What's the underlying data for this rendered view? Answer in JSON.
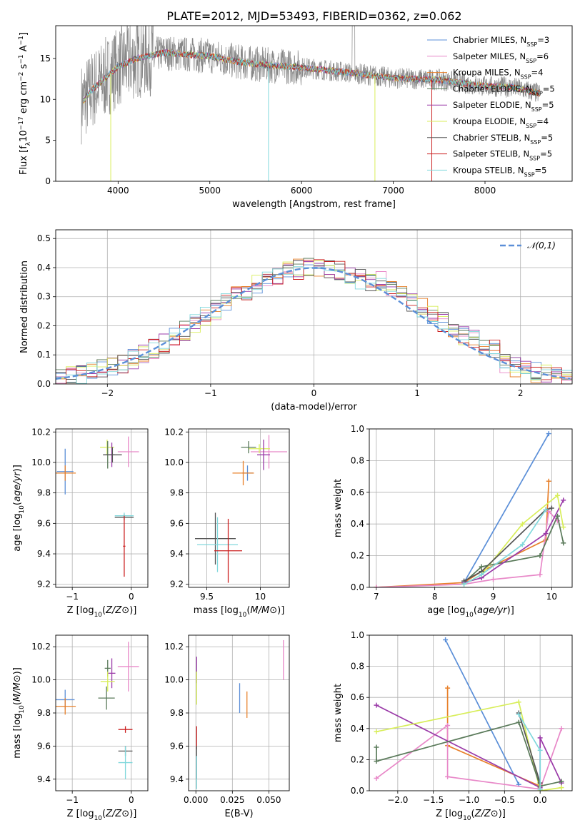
{
  "figure_title": "PLATE=2012, MJD=53493, FIBERID=0362, z=0.062",
  "series_colors": {
    "Chabrier MILES": "#5b8fd8",
    "Salpeter MILES": "#e888c8",
    "Kroupa MILES": "#e8802a",
    "Chabrier ELODIE": "#5a7a5a",
    "Salpeter ELODIE": "#9a3aa8",
    "Kroupa ELODIE": "#d8ee5a",
    "Chabrier STELIB": "#555555",
    "Salpeter STELIB": "#cc2222",
    "Kroupa STELIB": "#80d8dc"
  },
  "chart_data": [
    {
      "id": "spectrum",
      "type": "line",
      "xlabel": "wavelength [Angstrom, rest frame]",
      "ylabel": "Flux [f_λ 10^-17 erg cm^-2 s^-1 A^-1]",
      "xlim": [
        3320,
        8950
      ],
      "ylim": [
        0,
        19
      ],
      "xticks": [
        4000,
        5000,
        6000,
        7000,
        8000
      ],
      "yticks": [
        0,
        5,
        10,
        15
      ],
      "grid": false,
      "legend_position": "right",
      "legend": [
        {
          "name": "Chabrier MILES",
          "nssp": "3"
        },
        {
          "name": "Salpeter MILES",
          "nssp": "6"
        },
        {
          "name": "Kroupa MILES",
          "nssp": "4"
        },
        {
          "name": "Chabrier ELODIE",
          "nssp": "5"
        },
        {
          "name": "Salpeter ELODIE",
          "nssp": "5"
        },
        {
          "name": "Kroupa ELODIE",
          "nssp": "4"
        },
        {
          "name": "Chabrier STELIB",
          "nssp": "5"
        },
        {
          "name": "Salpeter STELIB",
          "nssp": "5"
        },
        {
          "name": "Kroupa STELIB",
          "nssp": "5"
        }
      ],
      "data_curve": {
        "color": "#888888",
        "x_range": [
          3600,
          8600
        ]
      },
      "model_envelope": [
        [
          3600,
          9.5
        ],
        [
          3700,
          11
        ],
        [
          3800,
          12
        ],
        [
          3900,
          13
        ],
        [
          4000,
          14
        ],
        [
          4200,
          15
        ],
        [
          4500,
          15.7
        ],
        [
          5000,
          15.3
        ],
        [
          5300,
          14.6
        ],
        [
          5600,
          14.2
        ],
        [
          6000,
          13.9
        ],
        [
          6500,
          13.3
        ],
        [
          7000,
          12.6
        ],
        [
          7500,
          12.4
        ],
        [
          8000,
          11.6
        ],
        [
          8300,
          11.5
        ],
        [
          8600,
          10.7
        ]
      ]
    },
    {
      "id": "residuals",
      "type": "bar",
      "xlabel": "(data-model)/error",
      "ylabel": "Normed distribution",
      "xlim": [
        -2.5,
        2.5
      ],
      "ylim": [
        0,
        0.53
      ],
      "xticks": [
        -2,
        -1,
        0,
        1,
        2
      ],
      "yticks": [
        0.0,
        0.1,
        0.2,
        0.3,
        0.4,
        0.5
      ],
      "grid": true,
      "legend_position": "top-right",
      "reference_curve": {
        "name": "N(0,1)",
        "mu": 0,
        "sigma": 1,
        "color": "#5b8fd8"
      },
      "bin_width": 0.1
    },
    {
      "id": "age_vs_Z",
      "type": "scatter",
      "xlabel": "Z [log10(Z/Z⊙)]",
      "ylabel": "age [log10(age/yr)]",
      "xlim": [
        -1.28,
        0.28
      ],
      "ylim": [
        9.18,
        10.22
      ],
      "xticks": [
        -1,
        0
      ],
      "yticks": [
        9.2,
        9.4,
        9.6,
        9.8,
        10.0,
        10.2
      ],
      "grid": true,
      "errorbars": [
        {
          "series": "Chabrier MILES",
          "x": -1.12,
          "y": 9.94,
          "xerr": 0.14,
          "yerr": 0.15
        },
        {
          "series": "Kroupa MILES",
          "x": -1.12,
          "y": 9.93,
          "xerr": 0.18,
          "yerr": 0.05
        },
        {
          "series": "Salpeter MILES",
          "x": -0.05,
          "y": 10.07,
          "xerr": 0.18,
          "yerr": 0.1
        },
        {
          "series": "Kroupa ELODIE",
          "x": -0.41,
          "y": 10.1,
          "xerr": 0.12,
          "yerr": 0.05
        },
        {
          "series": "Chabrier ELODIE",
          "x": -0.4,
          "y": 10.05,
          "xerr": 0.05,
          "yerr": 0.09
        },
        {
          "series": "Salpeter ELODIE",
          "x": -0.33,
          "y": 10.05,
          "xerr": 0.05,
          "yerr": 0.08
        },
        {
          "series": "Chabrier STELIB",
          "x": -0.32,
          "y": 10.05,
          "xerr": 0.16,
          "yerr": 0.05
        },
        {
          "series": "Chabrier STELIB",
          "x": -0.12,
          "y": 9.64,
          "xerr": 0.16,
          "yerr": 0.02
        },
        {
          "series": "Kroupa STELIB",
          "x": -0.12,
          "y": 9.65,
          "xerr": 0.16,
          "yerr": 0.02
        },
        {
          "series": "Salpeter STELIB",
          "x": -0.12,
          "y": 9.45,
          "xerr": 0.02,
          "yerr": 0.2
        }
      ]
    },
    {
      "id": "age_vs_mass",
      "type": "scatter",
      "xlabel": "mass [log10(M/M⊙)]",
      "ylabel": "",
      "xlim": [
        9.33,
        10.27
      ],
      "ylim": [
        9.18,
        10.22
      ],
      "xticks": [
        9.5,
        10.0
      ],
      "yticks": [
        9.2,
        9.4,
        9.6,
        9.8,
        10.0,
        10.2
      ],
      "grid": true,
      "errorbars": [
        {
          "series": "Chabrier MILES",
          "x": 9.88,
          "y": 9.93,
          "xerr": 0.05,
          "yerr": 0.05
        },
        {
          "series": "Kroupa MILES",
          "x": 9.84,
          "y": 9.93,
          "xerr": 0.1,
          "yerr": 0.08
        },
        {
          "series": "Salpeter MILES",
          "x": 10.08,
          "y": 10.07,
          "xerr": 0.17,
          "yerr": 0.11
        },
        {
          "series": "Kroupa ELODIE",
          "x": 9.99,
          "y": 10.09,
          "xerr": 0.1,
          "yerr": 0.03
        },
        {
          "series": "Chabrier ELODIE",
          "x": 9.89,
          "y": 10.1,
          "xerr": 0.07,
          "yerr": 0.04
        },
        {
          "series": "Salpeter ELODIE",
          "x": 10.03,
          "y": 10.05,
          "xerr": 0.06,
          "yerr": 0.1
        },
        {
          "series": "Chabrier STELIB",
          "x": 9.58,
          "y": 9.5,
          "xerr": 0.19,
          "yerr": 0.17
        },
        {
          "series": "Kroupa STELIB",
          "x": 9.6,
          "y": 9.46,
          "xerr": 0.19,
          "yerr": 0.18
        },
        {
          "series": "Salpeter STELIB",
          "x": 9.7,
          "y": 9.42,
          "xerr": 0.13,
          "yerr": 0.21
        }
      ]
    },
    {
      "id": "mass_weight_vs_age",
      "type": "line",
      "xlabel": "age [log10(age/yr)]",
      "ylabel": "mass weight",
      "xlim": [
        6.88,
        10.35
      ],
      "ylim": [
        0,
        1.0
      ],
      "xticks": [
        7,
        8,
        9,
        10
      ],
      "yticks": [
        0.0,
        0.2,
        0.4,
        0.6,
        0.8,
        1.0
      ],
      "grid": true,
      "series": [
        {
          "name": "Chabrier MILES",
          "x": [
            8.5,
            9.95
          ],
          "y": [
            0.03,
            0.97
          ]
        },
        {
          "name": "Kroupa MILES",
          "x": [
            7.0,
            8.5,
            8.8,
            9.9,
            9.95
          ],
          "y": [
            0.0,
            0.03,
            0.1,
            0.3,
            0.67
          ]
        },
        {
          "name": "Salpeter MILES",
          "x": [
            7.0,
            8.5,
            9.0,
            9.8,
            9.95,
            10.1
          ],
          "y": [
            0.0,
            0.02,
            0.05,
            0.08,
            0.48,
            0.42
          ]
        },
        {
          "name": "Chabrier ELODIE",
          "x": [
            8.5,
            8.8,
            9.8,
            10.1,
            10.2
          ],
          "y": [
            0.03,
            0.13,
            0.2,
            0.45,
            0.28
          ]
        },
        {
          "name": "Salpeter ELODIE",
          "x": [
            8.5,
            8.8,
            9.9,
            10.2
          ],
          "y": [
            0.03,
            0.06,
            0.34,
            0.55
          ]
        },
        {
          "name": "Kroupa ELODIE",
          "x": [
            8.5,
            8.8,
            9.5,
            10.1,
            10.2
          ],
          "y": [
            0.02,
            0.08,
            0.4,
            0.58,
            0.38
          ]
        },
        {
          "name": "Chabrier STELIB",
          "x": [
            8.5,
            8.8,
            9.9,
            10.0
          ],
          "y": [
            0.04,
            0.1,
            0.49,
            0.5
          ]
        },
        {
          "name": "Kroupa STELIB",
          "x": [
            8.5,
            8.8,
            9.5,
            9.9
          ],
          "y": [
            0.02,
            0.08,
            0.27,
            0.49
          ]
        }
      ]
    },
    {
      "id": "mass_vs_Z",
      "type": "scatter",
      "xlabel": "Z [log10(Z/Z⊙)]",
      "ylabel": "mass [log10(M/M⊙)]",
      "xlim": [
        -1.28,
        0.28
      ],
      "ylim": [
        9.33,
        10.27
      ],
      "xticks": [
        -1,
        0
      ],
      "yticks": [
        9.4,
        9.6,
        9.8,
        10.0,
        10.2
      ],
      "grid": true,
      "errorbars": [
        {
          "series": "Chabrier MILES",
          "x": -1.12,
          "y": 9.88,
          "xerr": 0.16,
          "yerr": 0.06
        },
        {
          "series": "Kroupa MILES",
          "x": -1.12,
          "y": 9.84,
          "xerr": 0.18,
          "yerr": 0.05
        },
        {
          "series": "Salpeter MILES",
          "x": -0.05,
          "y": 10.08,
          "xerr": 0.18,
          "yerr": 0.15
        },
        {
          "series": "Salpeter ELODIE",
          "x": -0.33,
          "y": 10.04,
          "xerr": 0.06,
          "yerr": 0.09
        },
        {
          "series": "Chabrier ELODIE",
          "x": -0.4,
          "y": 10.07,
          "xerr": 0.05,
          "yerr": 0.05
        },
        {
          "series": "Kroupa ELODIE",
          "x": -0.4,
          "y": 9.99,
          "xerr": 0.12,
          "yerr": 0.06
        },
        {
          "series": "Chabrier ELODIE",
          "x": -0.42,
          "y": 9.89,
          "xerr": 0.14,
          "yerr": 0.07
        },
        {
          "series": "Salpeter STELIB",
          "x": -0.1,
          "y": 9.7,
          "xerr": 0.12,
          "yerr": 0.02
        },
        {
          "series": "Chabrier STELIB",
          "x": -0.1,
          "y": 9.57,
          "xerr": 0.12,
          "yerr": 0.03
        },
        {
          "series": "Kroupa STELIB",
          "x": -0.1,
          "y": 9.5,
          "xerr": 0.12,
          "yerr": 0.1
        }
      ]
    },
    {
      "id": "mass_vs_ebv",
      "type": "scatter",
      "xlabel": "E(B-V)",
      "ylabel": "",
      "xlim": [
        -0.005,
        0.064
      ],
      "ylim": [
        9.33,
        10.27
      ],
      "xticks": [
        0.0,
        0.025,
        0.05
      ],
      "yticks": [
        9.4,
        9.6,
        9.8,
        10.0,
        10.2
      ],
      "grid": true,
      "errorbars": [
        {
          "series": "Salpeter MILES",
          "x": 0.06,
          "y": 10.12,
          "xerr": 0,
          "yerr": 0.12
        },
        {
          "series": "Chabrier MILES",
          "x": 0.03,
          "y": 9.89,
          "xerr": 0,
          "yerr": 0.09
        },
        {
          "series": "Kroupa MILES",
          "x": 0.035,
          "y": 9.85,
          "xerr": 0,
          "yerr": 0.08
        },
        {
          "series": "Salpeter ELODIE",
          "x": 0.0005,
          "y": 10.06,
          "xerr": 0,
          "yerr": 0.08
        },
        {
          "series": "Kroupa ELODIE",
          "x": 0.0005,
          "y": 9.95,
          "xerr": 0,
          "yerr": 0.1
        },
        {
          "series": "Salpeter STELIB",
          "x": 0.0005,
          "y": 9.65,
          "xerr": 0,
          "yerr": 0.07
        },
        {
          "series": "Chabrier STELIB",
          "x": 0.0005,
          "y": 9.5,
          "xerr": 0,
          "yerr": 0.1
        },
        {
          "series": "Kroupa STELIB",
          "x": 0.0005,
          "y": 9.44,
          "xerr": 0,
          "yerr": 0.1
        }
      ]
    },
    {
      "id": "mass_weight_vs_Z",
      "type": "line",
      "xlabel": "Z [log10(Z/Z⊙)]",
      "ylabel": "mass weight",
      "xlim": [
        -2.4,
        0.45
      ],
      "ylim": [
        0,
        1.0
      ],
      "xticks": [
        -2.0,
        -1.5,
        -1.0,
        -0.5,
        0.0
      ],
      "yticks": [
        0.0,
        0.2,
        0.4,
        0.6,
        0.8,
        1.0
      ],
      "grid": true,
      "series": [
        {
          "name": "Chabrier MILES",
          "x": [
            -1.33,
            -0.3
          ],
          "y": [
            0.97,
            0.04
          ]
        },
        {
          "name": "Kroupa MILES",
          "x": [
            -1.3,
            -1.3,
            0.0,
            0.0
          ],
          "y": [
            0.66,
            0.29,
            0.03,
            0.04
          ]
        },
        {
          "name": "Salpeter MILES",
          "x": [
            -2.3,
            -1.3,
            -1.3,
            0.0,
            0.3
          ],
          "y": [
            0.08,
            0.42,
            0.09,
            0.01,
            0.4
          ]
        },
        {
          "name": "Salpeter ELODIE",
          "x": [
            -2.3,
            0.0,
            0.0,
            0.3
          ],
          "y": [
            0.55,
            0.02,
            0.34,
            0.05
          ]
        },
        {
          "name": "Kroupa ELODIE",
          "x": [
            -2.3,
            -0.3,
            0.0,
            0.3
          ],
          "y": [
            0.38,
            0.57,
            0.0,
            0.02
          ]
        },
        {
          "name": "Chabrier ELODIE",
          "x": [
            -2.3,
            -2.3,
            -0.3,
            0.0,
            0.3
          ],
          "y": [
            0.28,
            0.19,
            0.44,
            0.03,
            0.06
          ]
        },
        {
          "name": "Chabrier STELIB",
          "x": [
            -0.3,
            0.0
          ],
          "y": [
            0.5,
            0.05
          ]
        },
        {
          "name": "Kroupa STELIB",
          "x": [
            -0.3,
            0.0,
            0.0
          ],
          "y": [
            0.49,
            0.26,
            0.01
          ]
        }
      ]
    }
  ]
}
